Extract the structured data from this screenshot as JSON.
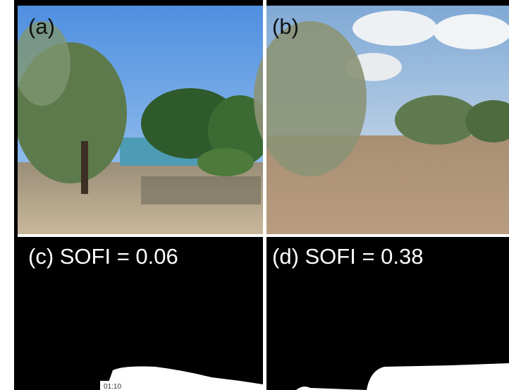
{
  "panels": [
    {
      "label": "(a)"
    },
    {
      "label": "(b)"
    },
    {
      "label": "(c) SOFI = 0.06"
    },
    {
      "label": "(d) SOFI = 0.38"
    }
  ],
  "player": {
    "timestamp": "01:10"
  }
}
